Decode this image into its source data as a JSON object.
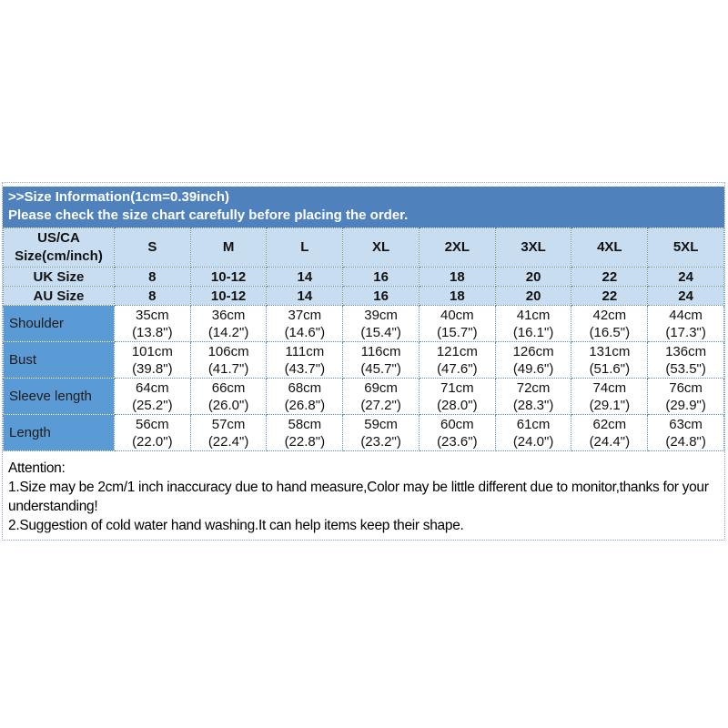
{
  "colors": {
    "banner_bg": "#4f81bd",
    "banner_text": "#ffffff",
    "header_row_bg": "#c9ddf1",
    "label_cell_bg": "#5b9bd5",
    "cell_border": "#5a8ac6",
    "outer_border": "#8ea9c8",
    "body_text": "#111111"
  },
  "banner": {
    "line1": ">>Size Information(1cm=0.39inch)",
    "line2": "Please check the size chart carefully before placing the order."
  },
  "table": {
    "corner": {
      "line1": "US/CA",
      "line2": "Size(cm/inch)"
    },
    "size_headers": [
      "S",
      "M",
      "L",
      "XL",
      "2XL",
      "3XL",
      "4XL",
      "5XL"
    ],
    "simple_rows": [
      {
        "label": "UK Size",
        "values": [
          "8",
          "10-12",
          "14",
          "16",
          "18",
          "20",
          "22",
          "24"
        ]
      },
      {
        "label": "AU Size",
        "values": [
          "8",
          "10-12",
          "14",
          "16",
          "18",
          "20",
          "22",
          "24"
        ]
      }
    ],
    "measurement_rows": [
      {
        "label": "Shoulder",
        "values": [
          {
            "cm": "35cm",
            "inch": "(13.8\")"
          },
          {
            "cm": "36cm",
            "inch": "(14.2\")"
          },
          {
            "cm": "37cm",
            "inch": "(14.6\")"
          },
          {
            "cm": "39cm",
            "inch": "(15.4\")"
          },
          {
            "cm": "40cm",
            "inch": "(15.7\")"
          },
          {
            "cm": "41cm",
            "inch": "(16.1\")"
          },
          {
            "cm": "42cm",
            "inch": "(16.5\")"
          },
          {
            "cm": "44cm",
            "inch": "(17.3\")"
          }
        ]
      },
      {
        "label": "Bust",
        "values": [
          {
            "cm": "101cm",
            "inch": "(39.8\")"
          },
          {
            "cm": "106cm",
            "inch": "(41.7\")"
          },
          {
            "cm": "111cm",
            "inch": "(43.7\")"
          },
          {
            "cm": "116cm",
            "inch": "(45.7\")"
          },
          {
            "cm": "121cm",
            "inch": "(47.6\")"
          },
          {
            "cm": "126cm",
            "inch": "(49.6\")"
          },
          {
            "cm": "131cm",
            "inch": "(51.6\")"
          },
          {
            "cm": "136cm",
            "inch": "(53.5\")"
          }
        ]
      },
      {
        "label": "Sleeve length",
        "values": [
          {
            "cm": "64cm",
            "inch": "(25.2\")"
          },
          {
            "cm": "66cm",
            "inch": "(26.0\")"
          },
          {
            "cm": "68cm",
            "inch": "(26.8\")"
          },
          {
            "cm": "69cm",
            "inch": "(27.2\")"
          },
          {
            "cm": "71cm",
            "inch": "(28.0\")"
          },
          {
            "cm": "72cm",
            "inch": "(28.3\")"
          },
          {
            "cm": "74cm",
            "inch": "(29.1\")"
          },
          {
            "cm": "76cm",
            "inch": "(29.9\")"
          }
        ]
      },
      {
        "label": "Length",
        "values": [
          {
            "cm": "56cm",
            "inch": "(22.0\")"
          },
          {
            "cm": "57cm",
            "inch": "(22.4\")"
          },
          {
            "cm": "58cm",
            "inch": "(22.8\")"
          },
          {
            "cm": "59cm",
            "inch": "(23.2\")"
          },
          {
            "cm": "60cm",
            "inch": "(23.6\")"
          },
          {
            "cm": "61cm",
            "inch": "(24.0\")"
          },
          {
            "cm": "62cm",
            "inch": "(24.4\")"
          },
          {
            "cm": "63cm",
            "inch": "(24.8\")"
          }
        ]
      }
    ]
  },
  "attention": {
    "title": "Attention:",
    "line1": "1.Size may be 2cm/1 inch inaccuracy due to hand measure,Color may be little different due to monitor,thanks for your understanding!",
    "line2": "2.Suggestion of cold water hand washing.It can help items keep their shape."
  }
}
